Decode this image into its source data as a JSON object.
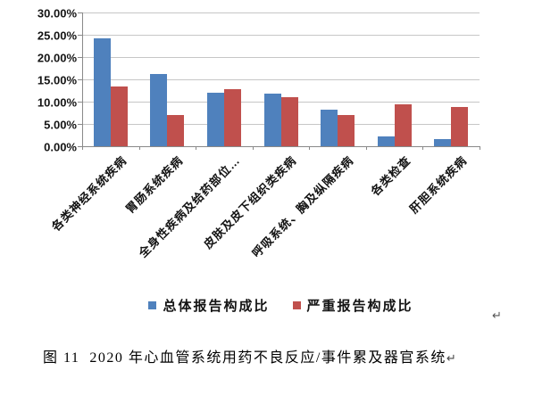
{
  "chart_data": {
    "type": "bar",
    "title": "",
    "categories": [
      "各类神经系统疾病",
      "胃肠系统疾病",
      "全身性疾病及给药部位…",
      "皮肤及皮下组织类疾病",
      "呼吸系统、胸及纵隔疾病",
      "各类检查",
      "肝胆系统疾病"
    ],
    "series": [
      {
        "name": "总体报告构成比",
        "color": "#4F81BD",
        "values": [
          24.3,
          16.3,
          12.1,
          11.9,
          8.2,
          2.3,
          1.6
        ]
      },
      {
        "name": "严重报告构成比",
        "color": "#C0504D",
        "values": [
          13.4,
          7.1,
          12.9,
          11.1,
          7.0,
          9.4,
          8.9
        ]
      }
    ],
    "ylim": [
      0,
      30
    ],
    "ytick_step": 5,
    "ytick_labels": [
      "0.00%",
      "5.00%",
      "10.00%",
      "15.00%",
      "20.00%",
      "25.00%",
      "30.00%"
    ],
    "grid": true,
    "legend_position": "bottom"
  },
  "caption": {
    "text": "图 11  2020 年心血管系统用药不良反应/事件累及器官系统",
    "return_mark": "↵"
  },
  "paragraph_mark": "↵"
}
